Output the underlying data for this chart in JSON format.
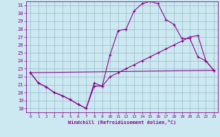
{
  "xlabel": "Windchill (Refroidissement éolien,°C)",
  "bg_color": "#cce8f0",
  "line_color": "#880088",
  "grid_color": "#99bbcc",
  "axis_color": "#880088",
  "xlim": [
    -0.5,
    23.5
  ],
  "ylim": [
    17.5,
    31.5
  ],
  "xticks": [
    0,
    1,
    2,
    3,
    4,
    5,
    6,
    7,
    8,
    9,
    10,
    11,
    12,
    13,
    14,
    15,
    16,
    17,
    18,
    19,
    20,
    21,
    22,
    23
  ],
  "yticks": [
    18,
    19,
    20,
    21,
    22,
    23,
    24,
    25,
    26,
    27,
    28,
    29,
    30,
    31
  ],
  "line1_x": [
    0,
    1,
    2,
    3,
    4,
    5,
    6,
    7,
    8,
    9,
    10,
    11,
    12,
    13,
    14,
    15,
    16,
    17,
    18,
    19,
    20,
    21,
    22,
    23
  ],
  "line1_y": [
    22.5,
    21.2,
    20.7,
    20.0,
    19.6,
    19.1,
    18.5,
    18.0,
    21.2,
    20.8,
    24.8,
    27.8,
    28.0,
    30.3,
    31.2,
    31.5,
    31.2,
    29.2,
    28.6,
    26.8,
    26.8,
    24.5,
    24.0,
    22.8
  ],
  "line2_x": [
    0,
    1,
    2,
    3,
    4,
    5,
    6,
    7,
    8,
    9,
    10,
    11,
    12,
    13,
    14,
    15,
    16,
    17,
    18,
    19,
    20,
    21,
    22,
    23
  ],
  "line2_y": [
    22.5,
    21.2,
    20.7,
    20.0,
    19.6,
    19.1,
    18.5,
    18.0,
    20.8,
    20.8,
    22.0,
    22.5,
    23.0,
    23.5,
    24.0,
    24.5,
    25.0,
    25.5,
    26.0,
    26.5,
    27.0,
    27.2,
    24.0,
    22.8
  ],
  "line3_x": [
    0,
    23
  ],
  "line3_y": [
    22.5,
    22.8
  ]
}
